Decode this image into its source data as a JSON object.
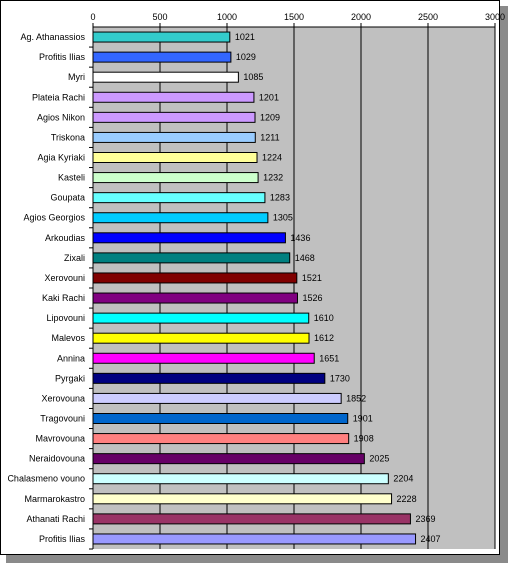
{
  "chart_data": {
    "type": "bar",
    "orientation": "horizontal",
    "categories": [
      "Ag. Athanassios",
      "Profitis Ilias",
      "Myri",
      "Plateia Rachi",
      "Agios Nikon",
      "Triskona",
      "Agia Kyriaki",
      "Kasteli",
      "Goupata",
      "Agios Georgios",
      "Arkoudias",
      "Zixali",
      "Xerovouni",
      "Kaki Rachi",
      "Lipovouni",
      "Malevos",
      "Annina",
      "Pyrgaki",
      "Xerovouna",
      "Tragovouni",
      "Mavrovouna",
      "Neraidovouna",
      "Chalasmeno vouno",
      "Marmarokastro",
      "Athanati Rachi",
      "Profitis Ilias"
    ],
    "values": [
      1021,
      1029,
      1085,
      1201,
      1209,
      1211,
      1224,
      1232,
      1283,
      1305,
      1436,
      1468,
      1521,
      1526,
      1610,
      1612,
      1651,
      1730,
      1852,
      1901,
      1908,
      2025,
      2204,
      2228,
      2369,
      2407
    ],
    "bar_colors": [
      "#33cccc",
      "#3366ff",
      "#ffffff",
      "#cc99ff",
      "#cc99ff",
      "#99ccff",
      "#ffff99",
      "#ccffcc",
      "#66ffff",
      "#00ccff",
      "#0000ff",
      "#008080",
      "#800000",
      "#800080",
      "#00ffff",
      "#ffff00",
      "#ff00ff",
      "#000080",
      "#ccccff",
      "#0066cc",
      "#ff8080",
      "#660066",
      "#ccffff",
      "#ffffcc",
      "#993366",
      "#9999ff"
    ],
    "xlim": [
      0,
      3000
    ],
    "xticks": [
      0,
      500,
      1000,
      1500,
      2000,
      2500,
      3000
    ],
    "xtick_labels": [
      "0",
      "500",
      "1000",
      "1500",
      "2000",
      "2500",
      "3000"
    ],
    "axis_position": "top",
    "grid": true,
    "plot_background": "#c0c0c0",
    "title": "",
    "xlabel": "",
    "ylabel": ""
  }
}
